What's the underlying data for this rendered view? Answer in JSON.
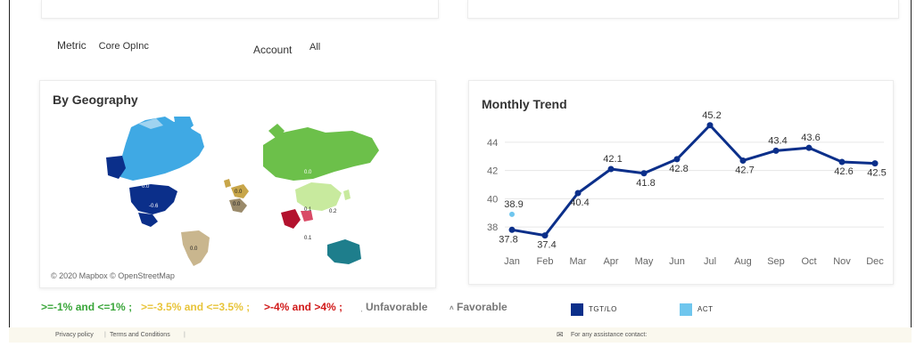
{
  "filters": {
    "metric_label": "Metric",
    "metric_value": "Core OpInc",
    "account_label": "Account",
    "account_value": "All"
  },
  "geography": {
    "title": "By Geography",
    "attribution": "© 2020 Mapbox © OpenStreetMap",
    "region_labels": [
      "0.0",
      "-0.6",
      "0.0",
      "0.0",
      "0.0",
      "0.1",
      "0.2",
      "0.1",
      "0.0"
    ],
    "colors": {
      "dark_blue": "#0b2f8a",
      "light_blue": "#3fa9e4",
      "green": "#6cc04a",
      "light_green": "#c8ea9e",
      "red": "#b3122e",
      "tan": "#c9b68e",
      "teal": "#1e7e8c"
    }
  },
  "legend": {
    "band_green": ">=-1% and <=1%",
    "band_yellow": ">=-3.5% and <=3.5%",
    "band_red": ">-4% and >4%",
    "sep": ";",
    "unfavorable": "Unfavorable",
    "favorable": "Favorable",
    "tgt_label": "TGT/LO",
    "act_label": "ACT",
    "colors": {
      "green": "#3aa63a",
      "yellow": "#e8c43a",
      "red": "#d11a1a",
      "tgt": "#0b2f8a",
      "act": "#6fc6ee"
    }
  },
  "chart_data": {
    "type": "line",
    "title": "Monthly Trend",
    "categories": [
      "Jan",
      "Feb",
      "Mar",
      "Apr",
      "May",
      "Jun",
      "Jul",
      "Aug",
      "Sep",
      "Oct",
      "Nov",
      "Dec"
    ],
    "series": [
      {
        "name": "TGT/LO",
        "color": "#0b2f8a",
        "values": [
          37.8,
          37.4,
          40.4,
          42.1,
          41.8,
          42.8,
          45.2,
          42.7,
          43.4,
          43.6,
          42.6,
          42.5
        ]
      },
      {
        "name": "ACT",
        "color": "#6fc6ee",
        "values": [
          38.9,
          null,
          null,
          null,
          null,
          null,
          null,
          null,
          null,
          null,
          null,
          null
        ]
      }
    ],
    "yticks": [
      38,
      40,
      42,
      44
    ],
    "ylim": [
      37,
      45.5
    ],
    "grid": true,
    "legend_position": "bottom"
  },
  "footer": {
    "privacy": "Privacy policy",
    "terms": "Terms and Conditions",
    "assist": "For any assistance contact:"
  }
}
